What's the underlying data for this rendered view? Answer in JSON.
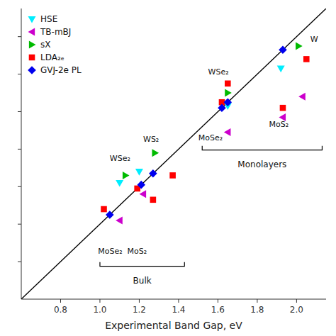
{
  "chart_data": {
    "type": "scatter",
    "xlabel": "Experimental Band Gap, eV",
    "xlim": [
      0.6,
      2.15
    ],
    "ylim": [
      0.6,
      2.15
    ],
    "xticks": [
      0.8,
      {
        "value": 1.0,
        "label": "1.0"
      },
      1.2,
      1.4,
      1.6,
      1.8,
      {
        "value": 2.0,
        "label": "2.0"
      }
    ],
    "yticks": [
      0.8,
      1.0,
      1.2,
      1.4,
      1.6,
      1.8,
      2.0
    ],
    "tick_labels": "x",
    "grid": false,
    "legend": "upper left",
    "series": [
      {
        "type": "line",
        "color": "#000000",
        "line_style": "solid",
        "x": [
          0.6,
          2.15
        ],
        "values": [
          0.6,
          2.15
        ]
      },
      {
        "name": "HSE",
        "color": "#00eeff",
        "marker": "triangle-down",
        "x": [
          1.1,
          1.2,
          1.65,
          1.92
        ],
        "values": [
          1.22,
          1.28,
          1.63,
          1.83
        ]
      },
      {
        "name": "TB-mBJ",
        "color": "#cc00cc",
        "marker": "triangle-left",
        "x": [
          1.1,
          1.22,
          1.65,
          1.93,
          2.03
        ],
        "values": [
          1.02,
          1.16,
          1.49,
          1.57,
          1.68
        ]
      },
      {
        "name": "sX",
        "color": "#00bb00",
        "marker": "triangle-right",
        "x": [
          1.13,
          1.28,
          1.65,
          2.01
        ],
        "values": [
          1.26,
          1.38,
          1.7,
          1.95
        ]
      },
      {
        "name": "LDA₂ₑ",
        "color": "#ff0000",
        "marker": "square",
        "x": [
          1.02,
          1.19,
          1.27,
          1.37,
          1.62,
          1.65,
          1.93,
          2.05
        ],
        "values": [
          1.08,
          1.19,
          1.13,
          1.26,
          1.65,
          1.75,
          1.62,
          1.88
        ]
      },
      {
        "name": "GVJ-2e PL",
        "color": "#0000ee",
        "marker": "diamond",
        "x": [
          1.05,
          1.21,
          1.27,
          1.62,
          1.65,
          1.93
        ],
        "values": [
          1.05,
          1.21,
          1.27,
          1.62,
          1.65,
          1.93
        ]
      }
    ],
    "annotations": [
      {
        "text": "WSe₂",
        "x": 1.55,
        "y": 1.79
      },
      {
        "text": "WS₂",
        "x": 1.22,
        "y": 1.43
      },
      {
        "text": "WSe₂",
        "x": 1.05,
        "y": 1.33
      },
      {
        "text": "MoSe₂",
        "x": 1.5,
        "y": 1.44
      },
      {
        "text": "MoS₂",
        "x": 1.86,
        "y": 1.51
      },
      {
        "text": "MoSe₂  MoS₂",
        "x": 0.99,
        "y": 0.835
      },
      {
        "text": "W",
        "x": 2.07,
        "y": 1.965
      }
    ],
    "brackets": [
      {
        "label": "Bulk",
        "x1": 1.0,
        "x2": 1.43,
        "y": 0.775,
        "label_x": 1.215,
        "label_y": 0.715
      },
      {
        "label": "Monolayers",
        "x1": 1.52,
        "x2": 2.13,
        "y": 1.395,
        "label_x": 1.825,
        "label_y": 1.335
      }
    ]
  }
}
